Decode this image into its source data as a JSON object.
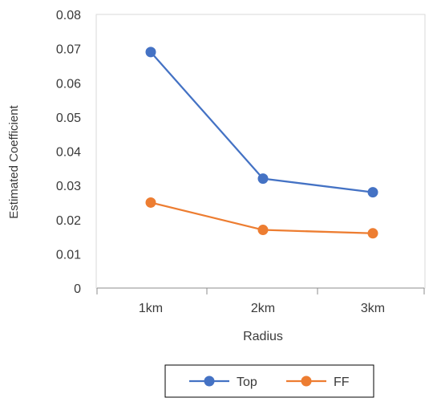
{
  "chart_data": {
    "type": "line",
    "title": "",
    "xlabel": "Radius",
    "ylabel": "Estimated Coefficient",
    "categories": [
      "1km",
      "2km",
      "3km"
    ],
    "ylim": [
      0,
      0.08
    ],
    "yticks": [
      0,
      0.01,
      0.02,
      0.03,
      0.04,
      0.05,
      0.06,
      0.07,
      0.08
    ],
    "ytick_labels": [
      "0",
      "0.01",
      "0.02",
      "0.03",
      "0.04",
      "0.05",
      "0.06",
      "0.07",
      "0.08"
    ],
    "grid": false,
    "legend_position": "bottom",
    "series": [
      {
        "name": "Top",
        "values": [
          0.069,
          0.032,
          0.028
        ],
        "color": "#4472C4"
      },
      {
        "name": "FF",
        "values": [
          0.025,
          0.017,
          0.016
        ],
        "color": "#ED7D31"
      }
    ]
  }
}
